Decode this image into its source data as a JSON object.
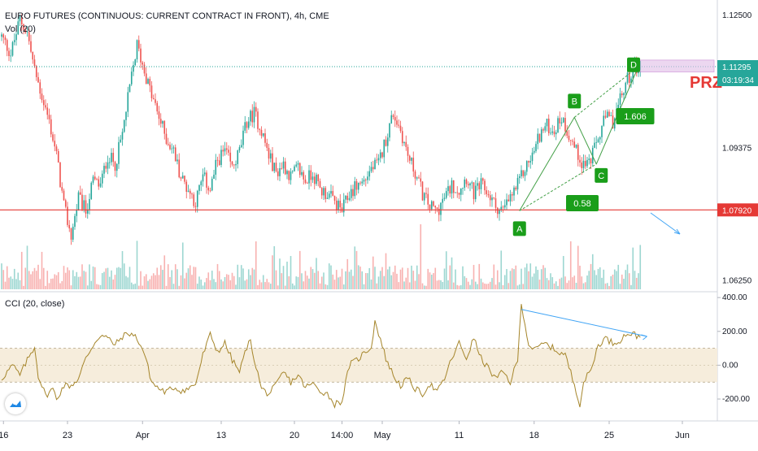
{
  "header": {
    "title": "EURO FUTURES (CONTINUOUS: CURRENT CONTRACT IN FRONT), 4h, CME",
    "vol_label": "Vol (20)"
  },
  "colors": {
    "up": "#26a69a",
    "down": "#ef5350",
    "support": "#e53935",
    "pattern": "#43a047",
    "pattern_label_bg": "#1a9e1a",
    "trend": "#42a5f5",
    "cci_line": "#a5852a",
    "cci_band": "#f6eddc",
    "prz_box": "#e1bee7",
    "prz_text": "#e53935"
  },
  "chart_data": [
    {
      "type": "candlestick",
      "symbol": "EURO FUTURES (CONTINUOUS: CURRENT CONTRACT IN FRONT)",
      "interval": "4h",
      "exchange": "CME",
      "y_ticks": [
        "1.12500",
        "1.09375",
        "1.06250"
      ],
      "ylim": [
        1.0605,
        1.1275
      ],
      "price_labels": {
        "last": "1.11295",
        "countdown": "03:19:34",
        "support": "1.07920"
      },
      "support_level": 1.0792,
      "last_price": 1.11295,
      "x_ticks": [
        "16",
        "23",
        "Apr",
        "13",
        "20",
        "14:00",
        "May",
        "11",
        "18",
        "25",
        "Jun"
      ],
      "x_tick_index": [
        1,
        36,
        77,
        120,
        160,
        186,
        208,
        250,
        291,
        332,
        372
      ],
      "bars_shown": 350,
      "close_path": [
        [
          0,
          1.12
        ],
        [
          5,
          1.116
        ],
        [
          10,
          1.124
        ],
        [
          14,
          1.121
        ],
        [
          18,
          1.112
        ],
        [
          22,
          1.106
        ],
        [
          26,
          1.1
        ],
        [
          30,
          1.092
        ],
        [
          34,
          1.08
        ],
        [
          38,
          1.073
        ],
        [
          42,
          1.082
        ],
        [
          46,
          1.079
        ],
        [
          50,
          1.086
        ],
        [
          54,
          1.085
        ],
        [
          58,
          1.092
        ],
        [
          62,
          1.09
        ],
        [
          66,
          1.097
        ],
        [
          70,
          1.108
        ],
        [
          74,
          1.118
        ],
        [
          78,
          1.112
        ],
        [
          82,
          1.106
        ],
        [
          86,
          1.101
        ],
        [
          90,
          1.096
        ],
        [
          94,
          1.093
        ],
        [
          98,
          1.087
        ],
        [
          102,
          1.084
        ],
        [
          106,
          1.081
        ],
        [
          110,
          1.087
        ],
        [
          114,
          1.084
        ],
        [
          118,
          1.091
        ],
        [
          122,
          1.093
        ],
        [
          126,
          1.089
        ],
        [
          130,
          1.093
        ],
        [
          134,
          1.1
        ],
        [
          138,
          1.102
        ],
        [
          142,
          1.098
        ],
        [
          146,
          1.092
        ],
        [
          150,
          1.088
        ],
        [
          154,
          1.09
        ],
        [
          158,
          1.087
        ],
        [
          162,
          1.089
        ],
        [
          166,
          1.086
        ],
        [
          170,
          1.088
        ],
        [
          174,
          1.084
        ],
        [
          178,
          1.083
        ],
        [
          182,
          1.081
        ],
        [
          186,
          1.079
        ],
        [
          190,
          1.083
        ],
        [
          194,
          1.085
        ],
        [
          198,
          1.086
        ],
        [
          202,
          1.089
        ],
        [
          206,
          1.09
        ],
        [
          210,
          1.096
        ],
        [
          214,
          1.102
        ],
        [
          218,
          1.098
        ],
        [
          222,
          1.092
        ],
        [
          226,
          1.088
        ],
        [
          230,
          1.083
        ],
        [
          234,
          1.08
        ],
        [
          238,
          1.079
        ],
        [
          242,
          1.082
        ],
        [
          246,
          1.085
        ],
        [
          250,
          1.084
        ],
        [
          254,
          1.087
        ],
        [
          258,
          1.083
        ],
        [
          262,
          1.085
        ],
        [
          266,
          1.083
        ],
        [
          270,
          1.08
        ],
        [
          274,
          1.079
        ],
        [
          278,
          1.082
        ],
        [
          282,
          1.085
        ],
        [
          286,
          1.089
        ],
        [
          290,
          1.092
        ],
        [
          294,
          1.097
        ],
        [
          298,
          1.099
        ],
        [
          302,
          1.098
        ],
        [
          306,
          1.101
        ],
        [
          310,
          1.097
        ],
        [
          314,
          1.093
        ],
        [
          318,
          1.09
        ],
        [
          322,
          1.091
        ],
        [
          326,
          1.096
        ],
        [
          330,
          1.101
        ],
        [
          334,
          1.1
        ],
        [
          338,
          1.105
        ],
        [
          342,
          1.11
        ],
        [
          346,
          1.113
        ],
        [
          350,
          1.113
        ]
      ],
      "xabcd_pattern": {
        "points": [
          {
            "label": "A",
            "bar": 283,
            "price": 1.079
          },
          {
            "label": "B",
            "bar": 313,
            "price": 1.101
          },
          {
            "label": "C",
            "bar": 325,
            "price": 1.09
          },
          {
            "label": "D",
            "bar": 348,
            "price": 1.113
          }
        ],
        "ratios": [
          {
            "text": "0.58",
            "between": "A-C"
          },
          {
            "text": "1.606",
            "between": "B-D"
          }
        ]
      },
      "prz_label": "PRZ",
      "volume": {
        "name": "Vol (20)",
        "y_range_fraction": 0.1
      }
    },
    {
      "type": "line",
      "name": "CCI (20, close)",
      "y_ticks": [
        "400.00",
        "200.00",
        "0.00",
        "-200.00"
      ],
      "ylim": [
        -320,
        420
      ],
      "band": [
        -100,
        100
      ],
      "path": [
        [
          0,
          -80
        ],
        [
          6,
          0
        ],
        [
          10,
          -60
        ],
        [
          14,
          30
        ],
        [
          18,
          110
        ],
        [
          20,
          -60
        ],
        [
          24,
          -180
        ],
        [
          28,
          -140
        ],
        [
          30,
          -200
        ],
        [
          34,
          -120
        ],
        [
          38,
          -120
        ],
        [
          42,
          -80
        ],
        [
          46,
          40
        ],
        [
          50,
          120
        ],
        [
          54,
          180
        ],
        [
          58,
          160
        ],
        [
          62,
          120
        ],
        [
          66,
          170
        ],
        [
          70,
          190
        ],
        [
          74,
          160
        ],
        [
          78,
          70
        ],
        [
          82,
          -100
        ],
        [
          86,
          -140
        ],
        [
          90,
          -160
        ],
        [
          94,
          -130
        ],
        [
          98,
          -150
        ],
        [
          102,
          -140
        ],
        [
          106,
          -110
        ],
        [
          110,
          60
        ],
        [
          114,
          180
        ],
        [
          118,
          80
        ],
        [
          122,
          130
        ],
        [
          126,
          30
        ],
        [
          130,
          -40
        ],
        [
          134,
          110
        ],
        [
          136,
          140
        ],
        [
          138,
          40
        ],
        [
          142,
          -140
        ],
        [
          146,
          -170
        ],
        [
          150,
          -120
        ],
        [
          154,
          -40
        ],
        [
          158,
          -100
        ],
        [
          162,
          -60
        ],
        [
          166,
          -130
        ],
        [
          170,
          -110
        ],
        [
          174,
          -150
        ],
        [
          178,
          -170
        ],
        [
          182,
          -230
        ],
        [
          186,
          -210
        ],
        [
          190,
          0
        ],
        [
          194,
          30
        ],
        [
          198,
          70
        ],
        [
          202,
          110
        ],
        [
          204,
          260
        ],
        [
          206,
          190
        ],
        [
          210,
          40
        ],
        [
          214,
          -60
        ],
        [
          218,
          -120
        ],
        [
          222,
          -80
        ],
        [
          226,
          -140
        ],
        [
          230,
          -170
        ],
        [
          234,
          -110
        ],
        [
          238,
          -160
        ],
        [
          242,
          -80
        ],
        [
          246,
          40
        ],
        [
          250,
          130
        ],
        [
          254,
          40
        ],
        [
          258,
          160
        ],
        [
          262,
          40
        ],
        [
          266,
          -20
        ],
        [
          270,
          -80
        ],
        [
          274,
          -40
        ],
        [
          278,
          -100
        ],
        [
          282,
          30
        ],
        [
          284,
          370
        ],
        [
          288,
          120
        ],
        [
          292,
          90
        ],
        [
          296,
          130
        ],
        [
          300,
          110
        ],
        [
          304,
          80
        ],
        [
          308,
          60
        ],
        [
          312,
          -80
        ],
        [
          314,
          -150
        ],
        [
          316,
          -230
        ],
        [
          318,
          -100
        ],
        [
          322,
          -30
        ],
        [
          326,
          120
        ],
        [
          330,
          160
        ],
        [
          334,
          130
        ],
        [
          338,
          150
        ],
        [
          342,
          190
        ],
        [
          346,
          180
        ],
        [
          350,
          160
        ]
      ],
      "trendline": [
        [
          284,
          330
        ],
        [
          350,
          170
        ]
      ]
    }
  ]
}
